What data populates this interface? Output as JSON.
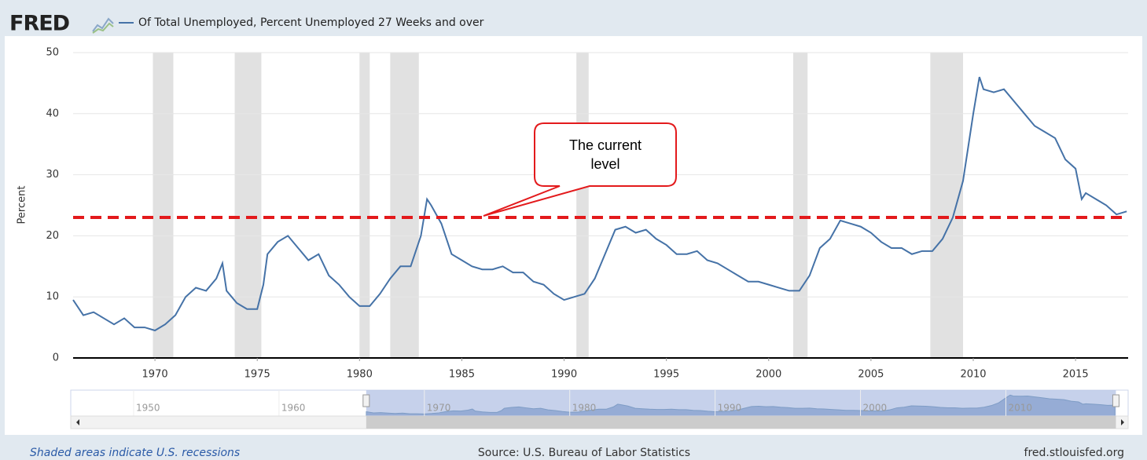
{
  "header": {
    "logo": "FRED"
  },
  "chart_data": {
    "type": "line",
    "y_label": "Percent",
    "x": [
      1966.0,
      1966.5,
      1967.0,
      1967.5,
      1968.0,
      1968.5,
      1969.0,
      1969.5,
      1970.0,
      1970.5,
      1971.0,
      1971.5,
      1972.0,
      1972.5,
      1973.0,
      1973.3,
      1973.5,
      1974.0,
      1974.5,
      1975.0,
      1975.3,
      1975.5,
      1976.0,
      1976.5,
      1977.0,
      1977.5,
      1978.0,
      1978.5,
      1979.0,
      1979.5,
      1980.0,
      1980.5,
      1981.0,
      1981.5,
      1982.0,
      1982.5,
      1983.0,
      1983.3,
      1983.5,
      1984.0,
      1984.5,
      1985.0,
      1985.5,
      1986.0,
      1986.5,
      1987.0,
      1987.5,
      1988.0,
      1988.5,
      1989.0,
      1989.5,
      1990.0,
      1990.5,
      1991.0,
      1991.5,
      1992.0,
      1992.5,
      1993.0,
      1993.5,
      1994.0,
      1994.5,
      1995.0,
      1995.5,
      1996.0,
      1996.5,
      1997.0,
      1997.5,
      1998.0,
      1998.5,
      1999.0,
      1999.5,
      2000.0,
      2000.5,
      2001.0,
      2001.5,
      2002.0,
      2002.5,
      2003.0,
      2003.5,
      2004.0,
      2004.5,
      2005.0,
      2005.5,
      2006.0,
      2006.5,
      2007.0,
      2007.5,
      2008.0,
      2008.5,
      2009.0,
      2009.5,
      2010.0,
      2010.3,
      2010.5,
      2011.0,
      2011.5,
      2012.0,
      2012.5,
      2013.0,
      2013.5,
      2014.0,
      2014.5,
      2015.0,
      2015.3,
      2015.5,
      2016.0,
      2016.5,
      2017.0,
      2017.5
    ],
    "series": [
      {
        "name": "Of Total Unemployed, Percent Unemployed 27 Weeks and over",
        "color": "#4572a7",
        "values": [
          9.5,
          7,
          7.5,
          6.5,
          5.5,
          6.5,
          5,
          5,
          4.5,
          5.5,
          7,
          10,
          11.5,
          11,
          13,
          15.5,
          11,
          9,
          8,
          8,
          12,
          17,
          19,
          20,
          18,
          16,
          17,
          13.5,
          12,
          10,
          8.5,
          8.5,
          10.5,
          13,
          15,
          15,
          20,
          26,
          25,
          22,
          17,
          16,
          15,
          14.5,
          14.5,
          15,
          14,
          14,
          12.5,
          12,
          10.5,
          9.5,
          10,
          10.5,
          13,
          17,
          21,
          21.5,
          20.5,
          21,
          19.5,
          18.5,
          17,
          17,
          17.5,
          16,
          15.5,
          14.5,
          13.5,
          12.5,
          12.5,
          12,
          11.5,
          11,
          11,
          13.5,
          18,
          19.5,
          22.5,
          22,
          21.5,
          20.5,
          19,
          18,
          18,
          17,
          17.5,
          17.5,
          19.5,
          23,
          29,
          40,
          46,
          44,
          43.5,
          44,
          42,
          40,
          38,
          37,
          36,
          32.5,
          31,
          26,
          27,
          26,
          25,
          23.5,
          24
        ]
      }
    ],
    "xlim": [
      1966.0,
      2017.57
    ],
    "xticks": [
      1970,
      1975,
      1980,
      1985,
      1990,
      1995,
      2000,
      2005,
      2010,
      2015
    ],
    "ylim": [
      0,
      50
    ],
    "yticks": [
      0,
      10,
      20,
      30,
      40,
      50
    ],
    "grid": true,
    "recession_color": "#e1e1e1",
    "recessions": [
      [
        1969.9,
        1970.9
      ],
      [
        1973.9,
        1975.2
      ],
      [
        1980.0,
        1980.5
      ],
      [
        1981.5,
        1982.9
      ],
      [
        1990.6,
        1991.2
      ],
      [
        2001.2,
        2001.9
      ],
      [
        2007.9,
        2009.5
      ]
    ],
    "reference_line": {
      "value": 23,
      "label": "The current level",
      "color": "#e31a1c"
    },
    "navigator": {
      "xlim": [
        1946,
        2017.6
      ],
      "xticks": [
        1950,
        1960,
        1970,
        1980,
        1990,
        2000,
        2010
      ]
    }
  },
  "footer": {
    "note": "Shaded areas indicate U.S. recessions",
    "source": "Source: U.S. Bureau of Labor Statistics",
    "site": "fred.stlouisfed.org"
  }
}
